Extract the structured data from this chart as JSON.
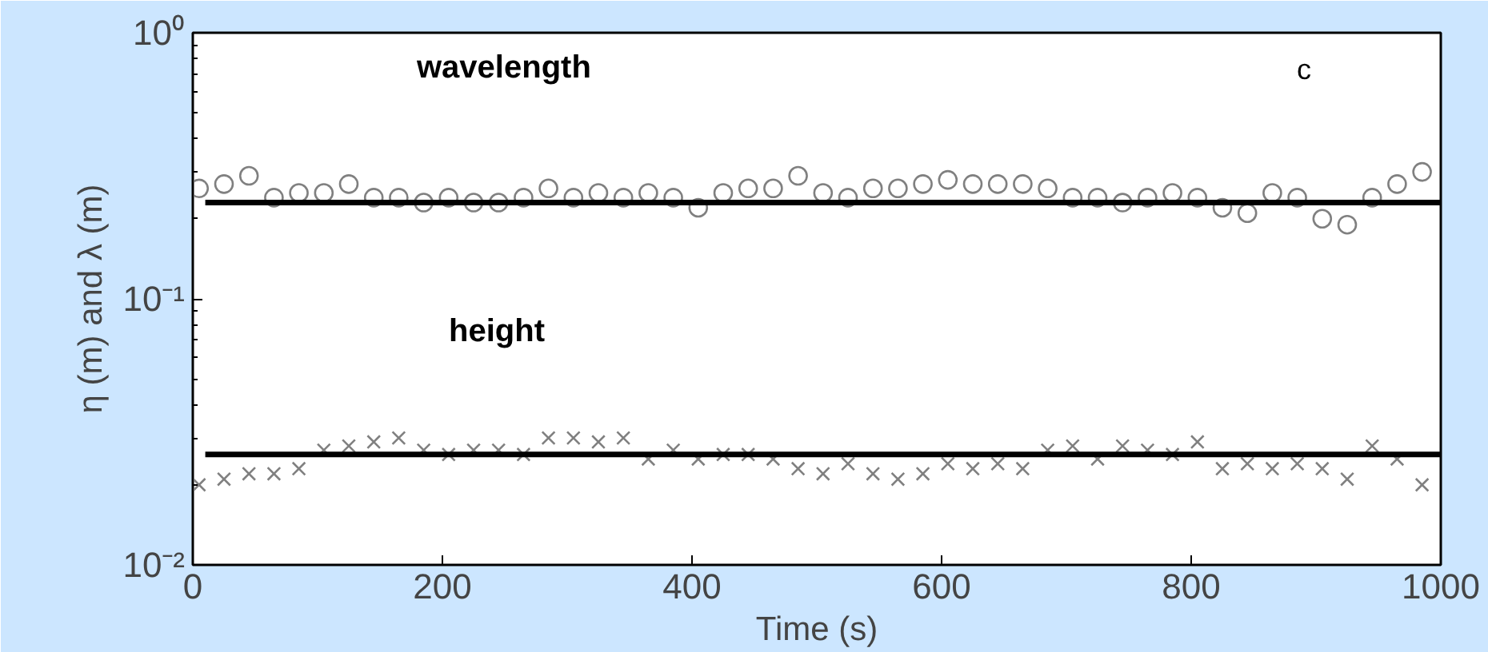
{
  "chart_data": {
    "type": "scatter",
    "xlabel": "Time (s)",
    "ylabel": "η (m) and λ (m)",
    "log": "y",
    "grid": false,
    "xlim": [
      0,
      1000
    ],
    "xticks": [
      0,
      200,
      400,
      600,
      800,
      1000
    ],
    "ylim": [
      0.01,
      1
    ],
    "yticks": [
      {
        "value": 0.01,
        "label": "10⁻²"
      },
      {
        "value": 0.1,
        "label": "10⁻¹"
      },
      {
        "value": 1,
        "label": "10⁰"
      }
    ],
    "annotations": [
      "wavelength",
      "height",
      "c"
    ],
    "series": [
      {
        "marker": "circle",
        "color": "#808080",
        "x": [
          5,
          25,
          45,
          65,
          85,
          105,
          125,
          145,
          165,
          185,
          205,
          225,
          245,
          265,
          285,
          305,
          325,
          345,
          365,
          385,
          405,
          425,
          445,
          465,
          485,
          505,
          525,
          545,
          565,
          585,
          605,
          625,
          645,
          665,
          685,
          705,
          725,
          745,
          765,
          785,
          805,
          825,
          845,
          865,
          885,
          905,
          925,
          945,
          965,
          985
        ],
        "values": [
          0.26,
          0.27,
          0.29,
          0.24,
          0.25,
          0.25,
          0.27,
          0.24,
          0.24,
          0.23,
          0.24,
          0.23,
          0.23,
          0.24,
          0.26,
          0.24,
          0.25,
          0.24,
          0.25,
          0.24,
          0.22,
          0.25,
          0.26,
          0.26,
          0.29,
          0.25,
          0.24,
          0.26,
          0.26,
          0.27,
          0.28,
          0.27,
          0.27,
          0.27,
          0.26,
          0.24,
          0.24,
          0.23,
          0.24,
          0.25,
          0.24,
          0.22,
          0.21,
          0.25,
          0.24,
          0.2,
          0.19,
          0.24,
          0.27,
          0.3
        ]
      },
      {
        "marker": "cross",
        "color": "#808080",
        "x": [
          5,
          25,
          45,
          65,
          85,
          105,
          125,
          145,
          165,
          185,
          205,
          225,
          245,
          265,
          285,
          305,
          325,
          345,
          365,
          385,
          405,
          425,
          445,
          465,
          485,
          505,
          525,
          545,
          565,
          585,
          605,
          625,
          645,
          665,
          685,
          705,
          725,
          745,
          765,
          785,
          805,
          825,
          845,
          865,
          885,
          905,
          925,
          945,
          965,
          985
        ],
        "values": [
          0.02,
          0.021,
          0.022,
          0.022,
          0.023,
          0.027,
          0.028,
          0.029,
          0.03,
          0.027,
          0.026,
          0.027,
          0.027,
          0.026,
          0.03,
          0.03,
          0.029,
          0.03,
          0.025,
          0.027,
          0.025,
          0.026,
          0.026,
          0.025,
          0.023,
          0.022,
          0.024,
          0.022,
          0.021,
          0.022,
          0.024,
          0.023,
          0.024,
          0.023,
          0.027,
          0.028,
          0.025,
          0.028,
          0.027,
          0.026,
          0.029,
          0.023,
          0.024,
          0.023,
          0.024,
          0.023,
          0.021,
          0.028,
          0.025,
          0.02
        ]
      },
      {
        "type": "line",
        "color": "#000000",
        "x": [
          10,
          1000
        ],
        "values": [
          0.23,
          0.23
        ]
      },
      {
        "type": "line",
        "color": "#000000",
        "x": [
          10,
          1000
        ],
        "values": [
          0.026,
          0.026
        ]
      }
    ]
  }
}
